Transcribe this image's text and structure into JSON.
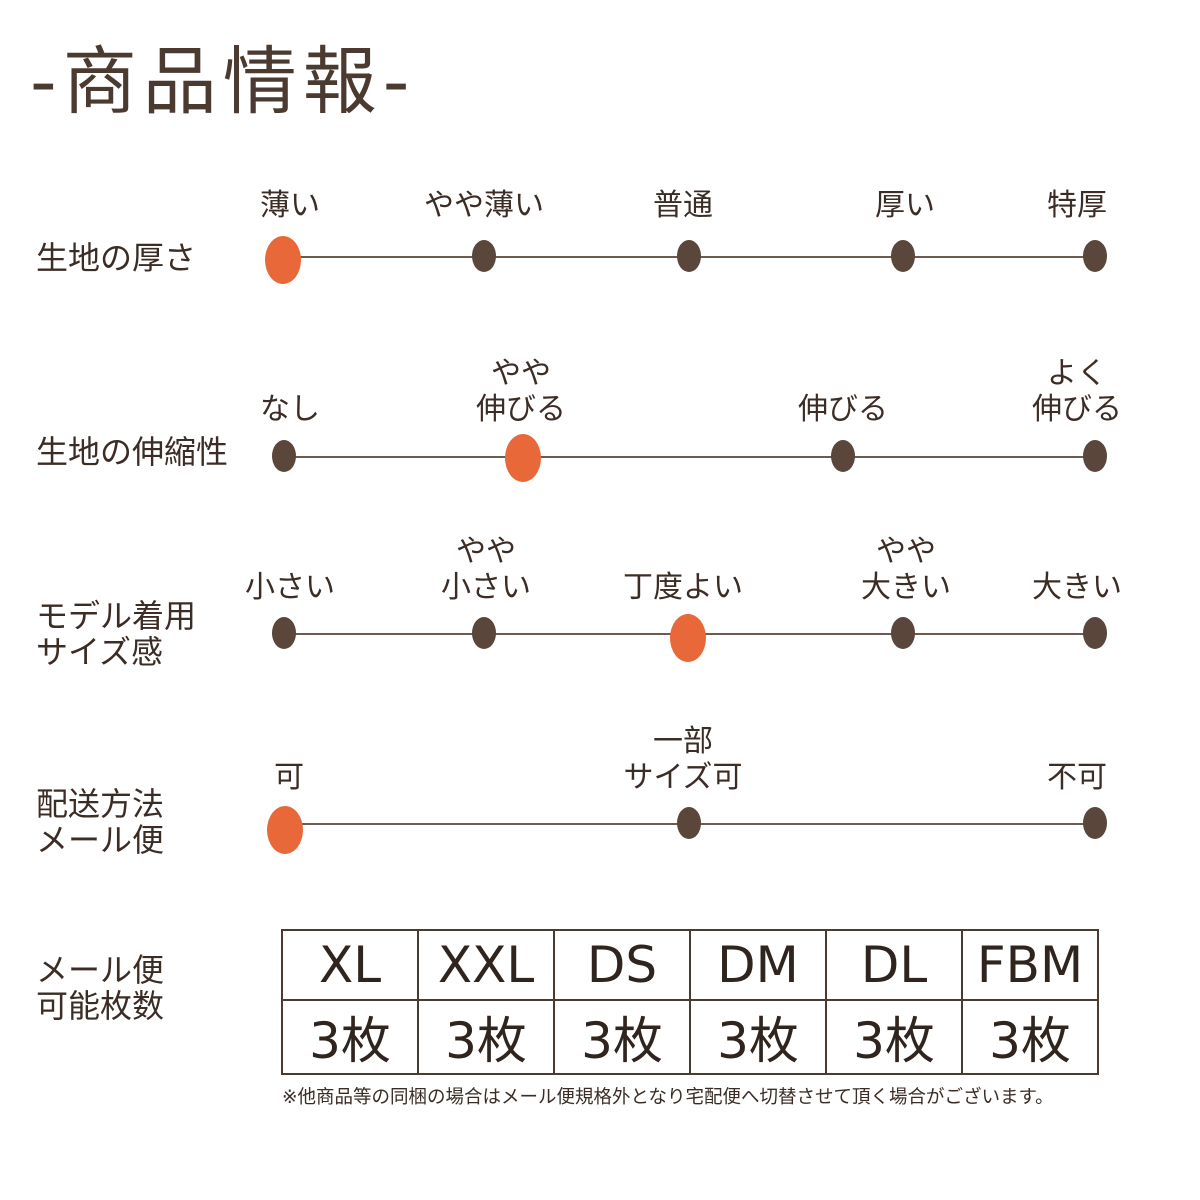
{
  "title": "-商品情報-",
  "rows": [
    {
      "label": "生地の厚さ",
      "options": [
        "薄い",
        "やや薄い",
        "普通",
        "厚い",
        "特厚"
      ],
      "selected": "薄い"
    },
    {
      "label": "生地の伸縮性",
      "options": [
        "なし",
        "やや\n伸びる",
        "伸びる",
        "よく\n伸びる"
      ],
      "selected": "やや\n伸びる"
    },
    {
      "label": "モデル着用\nサイズ感",
      "options": [
        "小さい",
        "やや\n小さい",
        "丁度よい",
        "やや\n大きい",
        "大きい"
      ],
      "selected": "丁度よい"
    },
    {
      "label": "配送方法\nメール便",
      "options": [
        "可",
        "一部\nサイズ可",
        "不可"
      ],
      "selected": "可"
    }
  ],
  "mail_capacity": {
    "label": "メール便\n可能枚数",
    "sizes": [
      "XL",
      "XXL",
      "DS",
      "DM",
      "DL",
      "FBM"
    ],
    "counts": [
      "3枚",
      "3枚",
      "3枚",
      "3枚",
      "3枚",
      "3枚"
    ]
  },
  "note": "※他商品等の同梱の場合はメール便規格外となり宅配便へ切替させて頂く場合がございます。",
  "colors": {
    "selected": "#e8683a",
    "dot": "#5a463a",
    "text": "#3b2d25"
  }
}
